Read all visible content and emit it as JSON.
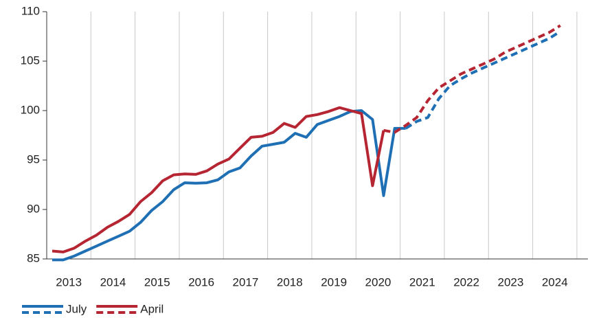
{
  "chart_data": {
    "type": "line",
    "categories": [
      null,
      "2013",
      null,
      null,
      null,
      "2014",
      null,
      null,
      null,
      "2015",
      null,
      null,
      null,
      "2016",
      null,
      null,
      null,
      "2017",
      null,
      null,
      null,
      "2018",
      null,
      null,
      null,
      "2019",
      null,
      null,
      null,
      "2020",
      null,
      null,
      null,
      "2021",
      null,
      null,
      null,
      "2022",
      null,
      null,
      null,
      "2023",
      null,
      null,
      null,
      "2024",
      null
    ],
    "series": [
      {
        "name": "July",
        "color": "#1f6fb4",
        "dashed_from": 32,
        "values": [
          84.9,
          84.9,
          85.3,
          85.8,
          86.3,
          86.8,
          87.3,
          87.8,
          88.7,
          89.9,
          90.8,
          92.0,
          92.7,
          92.65,
          92.7,
          93.0,
          93.8,
          94.2,
          95.4,
          96.4,
          96.6,
          96.8,
          97.7,
          97.3,
          98.6,
          99.0,
          99.4,
          99.9,
          100.0,
          99.1,
          91.4,
          98.2,
          98.2,
          98.9,
          99.3,
          101.2,
          102.5,
          103.2,
          103.8,
          104.3,
          104.8,
          105.3,
          105.8,
          106.3,
          106.8,
          107.3,
          108.0
        ]
      },
      {
        "name": "April",
        "color": "#b52532",
        "dashed_from": 30,
        "values": [
          85.8,
          85.7,
          86.1,
          86.8,
          87.4,
          88.2,
          88.8,
          89.5,
          90.8,
          91.7,
          92.9,
          93.5,
          93.6,
          93.55,
          93.9,
          94.6,
          95.1,
          96.2,
          97.3,
          97.4,
          97.8,
          98.7,
          98.3,
          99.4,
          99.6,
          99.9,
          100.3,
          100.0,
          99.7,
          92.4,
          98.0,
          97.8,
          98.5,
          99.3,
          101.0,
          102.3,
          103.0,
          103.7,
          104.2,
          104.7,
          105.2,
          105.9,
          106.4,
          106.9,
          107.4,
          107.9,
          108.6
        ]
      }
    ],
    "ylim": [
      85,
      110
    ],
    "yticks": [
      85,
      90,
      95,
      100,
      105,
      110
    ],
    "grid": "x"
  }
}
